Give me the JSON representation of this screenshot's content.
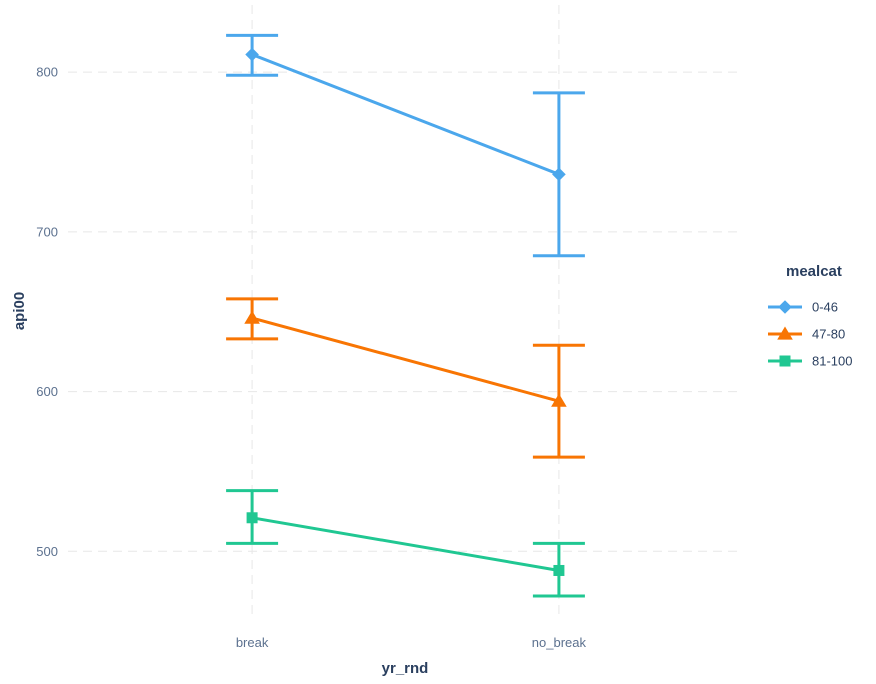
{
  "chart_data": {
    "type": "line",
    "subtype": "interaction-plot-with-error-bars",
    "title": "",
    "xlabel": "yr_rnd",
    "ylabel": "api00",
    "categories": [
      "break",
      "no_break"
    ],
    "series": [
      {
        "name": "0-46",
        "color": "#4BA7EC",
        "marker": "diamond",
        "values": [
          811,
          736
        ],
        "ci_low": [
          798,
          685
        ],
        "ci_high": [
          823,
          787
        ]
      },
      {
        "name": "47-80",
        "color": "#F87503",
        "marker": "triangle",
        "values": [
          646,
          594
        ],
        "ci_low": [
          633,
          559
        ],
        "ci_high": [
          658,
          629
        ]
      },
      {
        "name": "81-100",
        "color": "#20C792",
        "marker": "square",
        "values": [
          521,
          488
        ],
        "ci_low": [
          505,
          472
        ],
        "ci_high": [
          538,
          505
        ]
      }
    ],
    "yticks": [
      500,
      600,
      700,
      800
    ],
    "ylim": [
      457,
      842
    ],
    "grid": "dashed-both-axes",
    "legend_position": "right",
    "legend_title": "mealcat"
  },
  "style": {
    "background": "#ffffff",
    "gridline_color": "#e7e7e7",
    "tick_label_color": "#5c718f",
    "title_color": "#2a3f5f"
  }
}
